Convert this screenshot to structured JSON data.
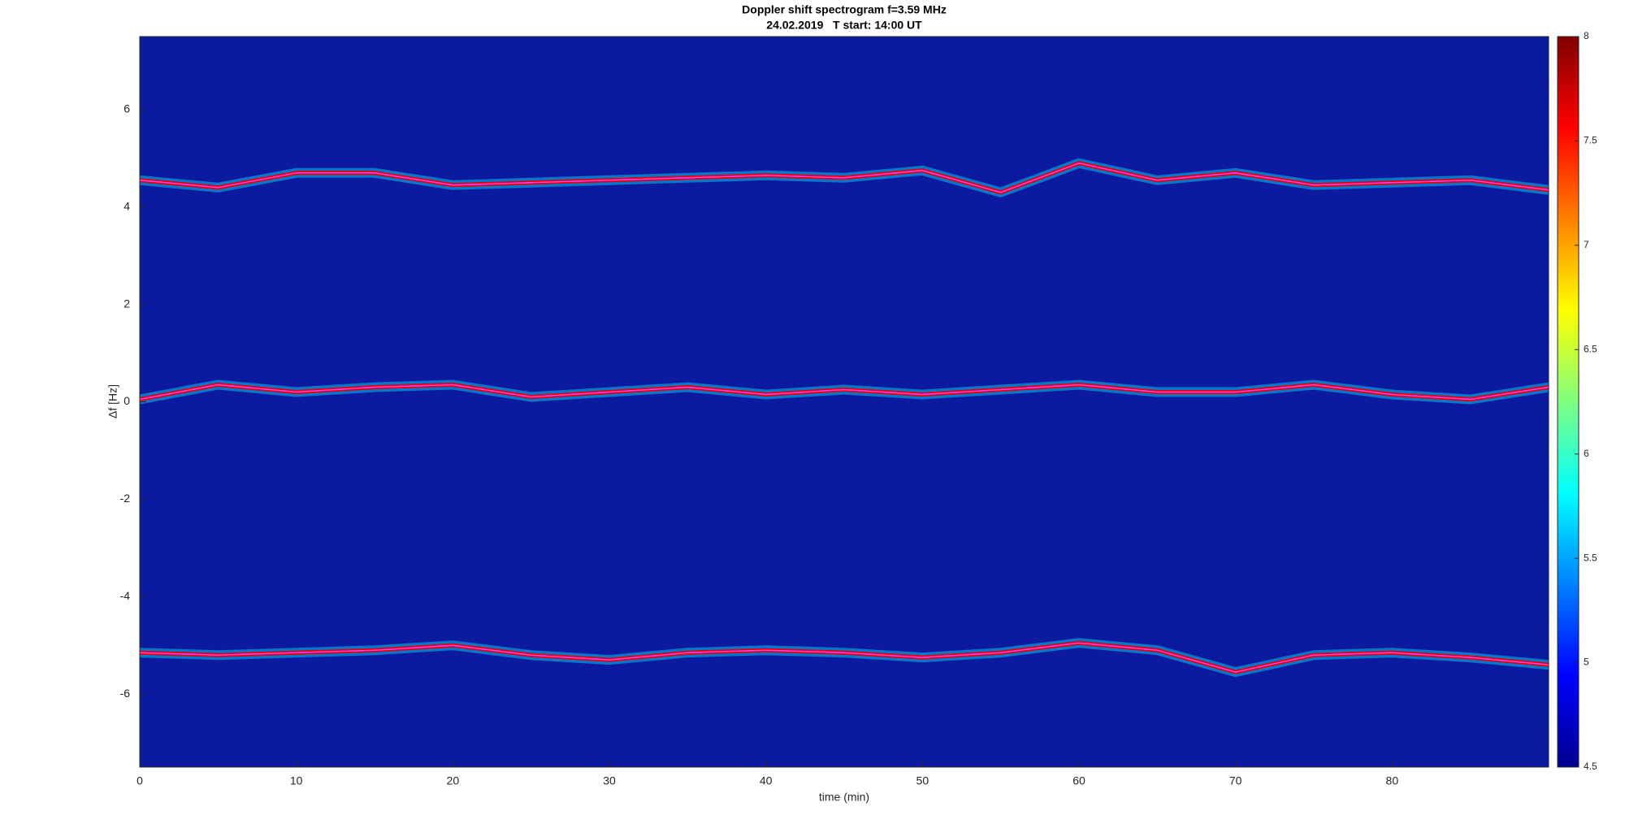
{
  "chart_data": {
    "type": "line",
    "title": "Doppler shift spectrogram f=3.59 MHz",
    "subtitle": "24.02.2019   T start: 14:00 UT",
    "x_label": "time (min)",
    "y_label": "Δf [Hz]",
    "x": [
      0,
      5,
      10,
      15,
      20,
      25,
      30,
      35,
      40,
      45,
      50,
      55,
      60,
      65,
      70,
      75,
      80,
      85,
      90
    ],
    "series": [
      {
        "color": "#e60000",
        "values": [
          4.55,
          4.4,
          4.7,
          4.7,
          4.45,
          4.5,
          4.55,
          4.6,
          4.65,
          4.6,
          4.75,
          4.3,
          4.9,
          4.55,
          4.7,
          4.45,
          4.5,
          4.55,
          4.35
        ]
      },
      {
        "color": "#e60000",
        "values": [
          0.05,
          0.35,
          0.2,
          0.3,
          0.35,
          0.1,
          0.2,
          0.3,
          0.15,
          0.25,
          0.15,
          0.25,
          0.35,
          0.2,
          0.2,
          0.35,
          0.15,
          0.05,
          0.3
        ]
      },
      {
        "color": "#e60000",
        "values": [
          -5.15,
          -5.2,
          -5.15,
          -5.1,
          -5.0,
          -5.2,
          -5.3,
          -5.15,
          -5.1,
          -5.15,
          -5.25,
          -5.15,
          -4.95,
          -5.1,
          -5.55,
          -5.2,
          -5.15,
          -5.25,
          -5.4
        ]
      }
    ],
    "xlim": [
      0,
      90
    ],
    "xticks": [
      0,
      10,
      20,
      30,
      40,
      50,
      60,
      70,
      80
    ],
    "ylim": [
      -7.5,
      7.5
    ],
    "yticks": [
      -6,
      -4,
      -2,
      0,
      2,
      4,
      6
    ],
    "background": "#0b1a9e",
    "clim": [
      4.5,
      8
    ],
    "cticks": [
      4.5,
      5,
      5.5,
      6,
      6.5,
      7,
      7.5,
      8
    ],
    "colormap": [
      "#00008f",
      "#0000ff",
      "#0080ff",
      "#00ffff",
      "#80ff80",
      "#ffff00",
      "#ff8000",
      "#ff0000",
      "#800000"
    ]
  }
}
